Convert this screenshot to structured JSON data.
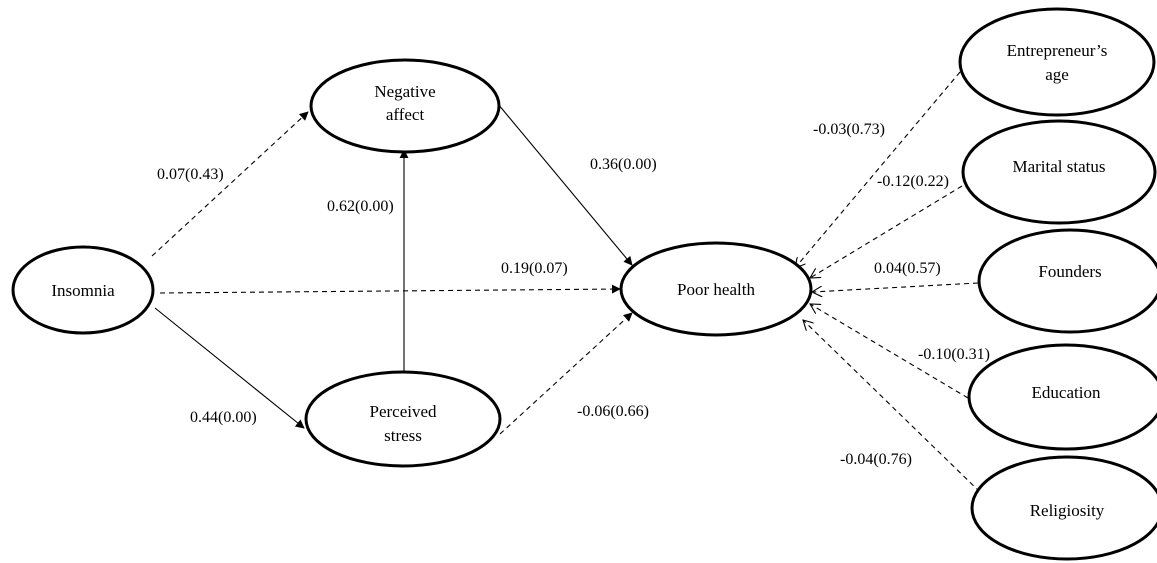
{
  "nodes": {
    "insomnia": {
      "lines": [
        "Insomnia"
      ]
    },
    "negative_affect": {
      "lines": [
        "Negative",
        "affect"
      ]
    },
    "perceived_stress": {
      "lines": [
        "Perceived",
        "stress"
      ]
    },
    "poor_health": {
      "lines": [
        "Poor health"
      ]
    },
    "entrepreneurs_age": {
      "lines": [
        "Entrepreneur’s",
        "age"
      ]
    },
    "marital_status": {
      "lines": [
        "Marital status"
      ]
    },
    "founders": {
      "lines": [
        "Founders"
      ]
    },
    "education": {
      "lines": [
        "Education"
      ]
    },
    "religiosity": {
      "lines": [
        "Religiosity"
      ]
    }
  },
  "edges": {
    "insomnia_to_negative_affect": {
      "label": "0.07(0.43)",
      "style": "dashed"
    },
    "insomnia_to_perceived_stress": {
      "label": "0.44(0.00)",
      "style": "solid"
    },
    "insomnia_to_poor_health": {
      "label": "0.19(0.07)",
      "style": "dashed"
    },
    "perceived_stress_to_negative_affect": {
      "label": "0.62(0.00)",
      "style": "solid"
    },
    "negative_affect_to_poor_health": {
      "label": "0.36(0.00)",
      "style": "solid"
    },
    "perceived_stress_to_poor_health": {
      "label": "-0.06(0.66)",
      "style": "dashed"
    },
    "entrepreneurs_age_to_poor_health": {
      "label": "-0.03(0.73)",
      "style": "dashed"
    },
    "marital_status_to_poor_health": {
      "label": "-0.12(0.22)",
      "style": "dashed"
    },
    "founders_to_poor_health": {
      "label": "0.04(0.57)",
      "style": "dashed"
    },
    "education_to_poor_health": {
      "label": "-0.10(0.31)",
      "style": "dashed"
    },
    "religiosity_to_poor_health": {
      "label": "-0.04(0.76)",
      "style": "dashed"
    }
  }
}
